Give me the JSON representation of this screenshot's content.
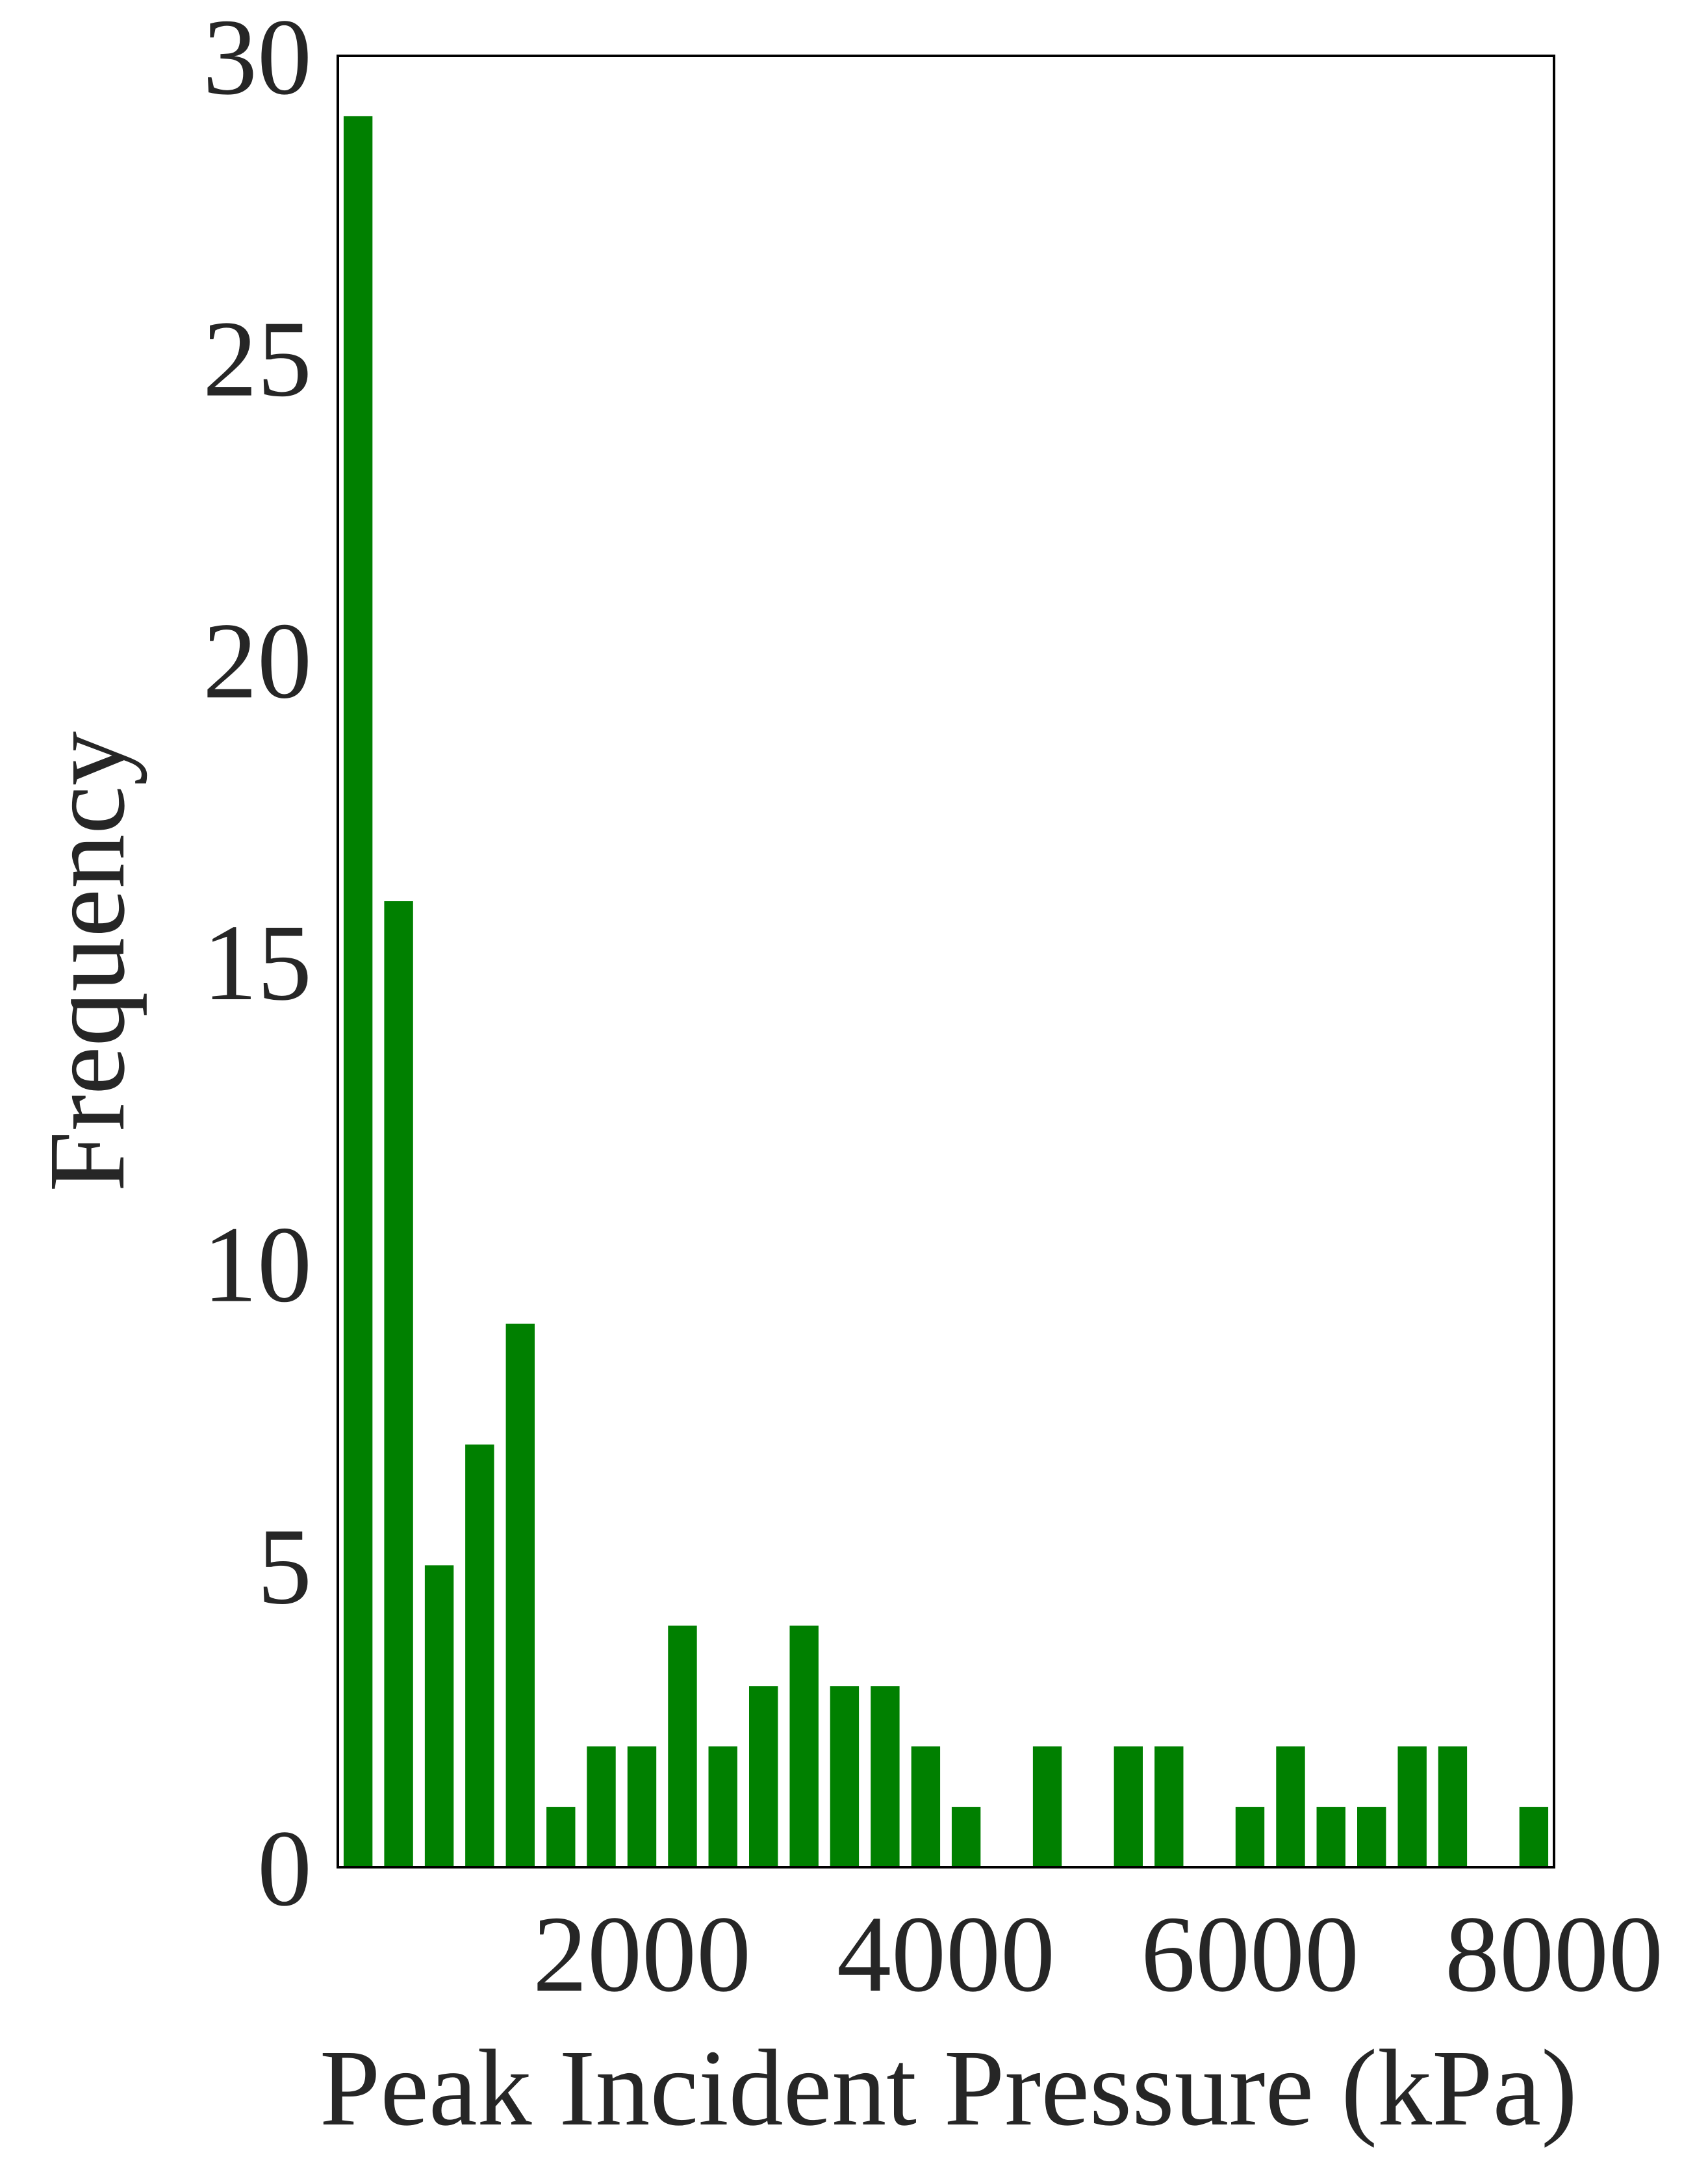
{
  "chart_data": {
    "type": "bar",
    "title": "",
    "xlabel": "Peak Incident Pressure (kPa)",
    "ylabel": "Frequency",
    "xlim": [
      0,
      8000
    ],
    "ylim": [
      0,
      30
    ],
    "xticks": [
      2000,
      4000,
      6000,
      8000
    ],
    "yticks": [
      0,
      5,
      10,
      15,
      20,
      25,
      30
    ],
    "grid": false,
    "legend": "none",
    "bar_color": "#008000",
    "bins": [
      {
        "x": 133,
        "value": 29
      },
      {
        "x": 400,
        "value": 16
      },
      {
        "x": 667,
        "value": 5
      },
      {
        "x": 933,
        "value": 7
      },
      {
        "x": 1200,
        "value": 9
      },
      {
        "x": 1467,
        "value": 1
      },
      {
        "x": 1733,
        "value": 2
      },
      {
        "x": 2000,
        "value": 2
      },
      {
        "x": 2267,
        "value": 4
      },
      {
        "x": 2533,
        "value": 2
      },
      {
        "x": 2800,
        "value": 3
      },
      {
        "x": 3067,
        "value": 4
      },
      {
        "x": 3333,
        "value": 3
      },
      {
        "x": 3600,
        "value": 3
      },
      {
        "x": 3867,
        "value": 2
      },
      {
        "x": 4133,
        "value": 1
      },
      {
        "x": 4400,
        "value": 0
      },
      {
        "x": 4667,
        "value": 2
      },
      {
        "x": 4933,
        "value": 0
      },
      {
        "x": 5200,
        "value": 2
      },
      {
        "x": 5467,
        "value": 2
      },
      {
        "x": 5733,
        "value": 0
      },
      {
        "x": 6000,
        "value": 1
      },
      {
        "x": 6267,
        "value": 2
      },
      {
        "x": 6533,
        "value": 1
      },
      {
        "x": 6800,
        "value": 1
      },
      {
        "x": 7067,
        "value": 2
      },
      {
        "x": 7333,
        "value": 2
      },
      {
        "x": 7600,
        "value": 0
      },
      {
        "x": 7867,
        "value": 1
      }
    ]
  }
}
